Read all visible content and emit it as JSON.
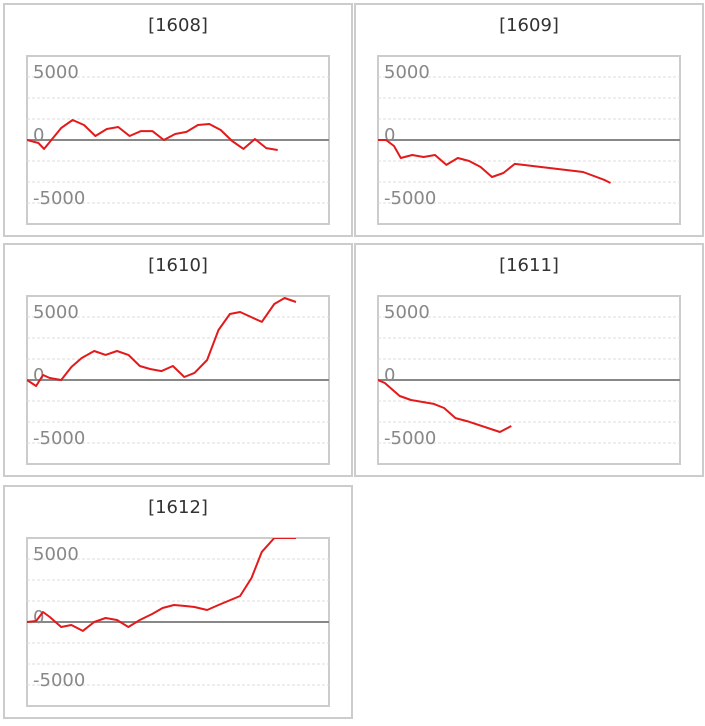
{
  "chart_data": [
    {
      "type": "line",
      "title": "[1608]",
      "x": [
        0,
        1,
        1.5,
        3,
        4,
        5,
        6,
        7,
        8,
        9,
        10,
        11,
        12,
        13,
        14,
        15,
        16,
        17,
        18,
        19,
        20,
        21,
        22
      ],
      "series": [
        {
          "color": "#e31a1c",
          "values": [
            0,
            -240,
            -710,
            950,
            1590,
            1190,
            320,
            870,
            1030,
            320,
            710,
            710,
            0,
            480,
            640,
            1190,
            1270,
            790,
            -80,
            -710,
            80,
            -640,
            -790
          ]
        }
      ],
      "xlim": [
        0,
        26.5
      ],
      "ylim": [
        -6667,
        6667
      ],
      "yticks": [
        5000,
        0,
        -5000
      ],
      "minor_yticks": [
        3333,
        1667,
        -1667,
        -3333
      ],
      "grid": true
    },
    {
      "type": "line",
      "title": "[1609]",
      "x": [
        0,
        0.7,
        1.4,
        2,
        3,
        4,
        5,
        6,
        7,
        8,
        9,
        10,
        11,
        12,
        18,
        19.9,
        20.4
      ],
      "series": [
        {
          "color": "#e31a1c",
          "values": [
            0,
            0,
            -480,
            -1430,
            -1190,
            -1350,
            -1190,
            -1980,
            -1430,
            -1670,
            -2140,
            -2940,
            -2620,
            -1900,
            -2540,
            -3180,
            -3410
          ]
        }
      ],
      "xlim": [
        0,
        26.5
      ],
      "ylim": [
        -6667,
        6667
      ],
      "yticks": [
        5000,
        0,
        -5000
      ],
      "minor_yticks": [
        3333,
        1667,
        -1667,
        -3333
      ],
      "grid": true
    },
    {
      "type": "line",
      "title": "[1610]",
      "x": [
        0,
        0.8,
        1.4,
        2,
        3,
        3.9,
        4.8,
        5.9,
        6.9,
        7.9,
        8.9,
        9.9,
        10.8,
        11.8,
        12.8,
        13.8,
        14.7,
        15.8,
        16.8,
        17.8,
        18.7,
        20.6,
        21.7,
        22.6,
        23.6
      ],
      "series": [
        {
          "color": "#e31a1c",
          "values": [
            0,
            -480,
            400,
            160,
            0,
            1030,
            1750,
            2300,
            1990,
            2300,
            1990,
            1110,
            870,
            710,
            1110,
            240,
            560,
            1590,
            3970,
            5240,
            5400,
            4610,
            6030,
            6510,
            6190
          ]
        }
      ],
      "xlim": [
        0,
        26.5
      ],
      "ylim": [
        -6667,
        6667
      ],
      "yticks": [
        5000,
        0,
        -5000
      ],
      "minor_yticks": [
        3333,
        1667,
        -1667,
        -3333
      ],
      "grid": true
    },
    {
      "type": "line",
      "title": "[1611]",
      "x": [
        0,
        0.6,
        1.9,
        2.9,
        4.9,
        5.8,
        6.8,
        7.8,
        10.7,
        11.7
      ],
      "series": [
        {
          "color": "#e31a1c",
          "values": [
            0,
            -240,
            -1270,
            -1590,
            -1900,
            -2220,
            -3020,
            -3260,
            -4130,
            -3650
          ]
        }
      ],
      "xlim": [
        0,
        26.5
      ],
      "ylim": [
        -6667,
        6667
      ],
      "yticks": [
        5000,
        0,
        -5000
      ],
      "minor_yticks": [
        3333,
        1667,
        -1667,
        -3333
      ],
      "grid": true
    },
    {
      "type": "line",
      "title": "[1612]",
      "x": [
        0,
        0.8,
        1.4,
        2,
        3,
        3.9,
        4.9,
        5.9,
        6.9,
        7.9,
        8.9,
        9.9,
        11,
        11.9,
        12.9,
        13.9,
        14.7,
        15.8,
        16.8,
        18.7,
        19.7,
        20.6,
        21.7,
        23.6
      ],
      "series": [
        {
          "color": "#e31a1c",
          "values": [
            0,
            80,
            790,
            400,
            -400,
            -240,
            -710,
            0,
            320,
            160,
            -400,
            160,
            640,
            1110,
            1350,
            1270,
            1190,
            950,
            1350,
            2060,
            3490,
            5560,
            6670,
            6670
          ]
        }
      ],
      "xlim": [
        0,
        26.5
      ],
      "ylim": [
        -6667,
        6667
      ],
      "yticks": [
        5000,
        0,
        -5000
      ],
      "minor_yticks": [
        3333,
        1667,
        -1667,
        -3333
      ],
      "grid": true
    }
  ]
}
